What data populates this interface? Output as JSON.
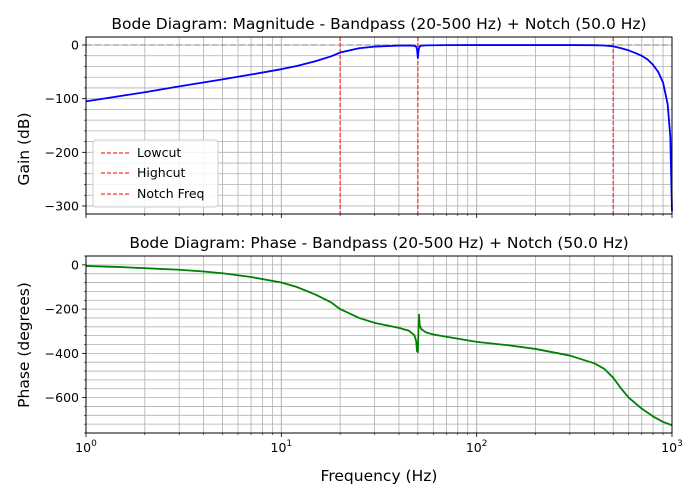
{
  "figure": {
    "xlabel": "Frequency (Hz)"
  },
  "chart_data": [
    {
      "type": "line",
      "title": "Bode Diagram: Magnitude - Bandpass (20-500 Hz) + Notch (50.0 Hz)",
      "xlabel": "",
      "ylabel": "Gain (dB)",
      "xscale": "log",
      "xlim": [
        1,
        1000
      ],
      "ylim": [
        -315,
        15
      ],
      "grid": true,
      "legend_position": "center-left",
      "x_ticks": [
        {
          "base": "10",
          "exp": "0",
          "value": 1
        },
        {
          "base": "10",
          "exp": "1",
          "value": 10
        },
        {
          "base": "10",
          "exp": "2",
          "value": 100
        },
        {
          "base": "10",
          "exp": "3",
          "value": 1000
        }
      ],
      "y_ticks": [
        {
          "label": "0",
          "value": 0
        },
        {
          "label": "−100",
          "value": -100
        },
        {
          "label": "−200",
          "value": -200
        },
        {
          "label": "−300",
          "value": -300
        }
      ],
      "series": [
        {
          "color": "#0000ff",
          "x": [
            1,
            1.5,
            2,
            3,
            5,
            7,
            10,
            12,
            15,
            18,
            20,
            25,
            30,
            40,
            46,
            48,
            49,
            49.5,
            50,
            50.5,
            51,
            52,
            55,
            70,
            100,
            150,
            200,
            300,
            400,
            450,
            500,
            550,
            600,
            650,
            700,
            750,
            800,
            850,
            900,
            950,
            980,
            1000
          ],
          "values": [
            -105,
            -95,
            -88,
            -77,
            -64,
            -55,
            -45,
            -39,
            -30,
            -21,
            -14,
            -6,
            -3,
            -1,
            -0.7,
            -1.5,
            -3,
            -8,
            -24,
            -8,
            -3,
            -1.3,
            -0.6,
            -0.2,
            0,
            0,
            0,
            0,
            -0.3,
            -0.8,
            -2.5,
            -6,
            -10,
            -15,
            -20,
            -27,
            -37,
            -50,
            -70,
            -110,
            -170,
            -310
          ]
        }
      ],
      "reference_lines": [
        {
          "name": "Lowcut",
          "axis": "x",
          "value": 20,
          "color": "#ff0000",
          "style": "dashed"
        },
        {
          "name": "Highcut",
          "axis": "x",
          "value": 500,
          "color": "#ff0000",
          "style": "dashed"
        },
        {
          "name": "Notch Freq",
          "axis": "x",
          "value": 50,
          "color": "#ff0000",
          "style": "dashed"
        },
        {
          "name": "",
          "axis": "y",
          "value": 0,
          "color": "#808080",
          "style": "dashed"
        }
      ],
      "legend": [
        "Lowcut",
        "Highcut",
        "Notch Freq"
      ]
    },
    {
      "type": "line",
      "title": "Bode Diagram: Phase - Bandpass (20-500 Hz) + Notch (50.0 Hz)",
      "xlabel": "Frequency (Hz)",
      "ylabel": "Phase (degrees)",
      "xscale": "log",
      "xlim": [
        1,
        1000
      ],
      "ylim": [
        -760,
        40
      ],
      "grid": true,
      "x_ticks": [
        {
          "base": "10",
          "exp": "0",
          "value": 1
        },
        {
          "base": "10",
          "exp": "1",
          "value": 10
        },
        {
          "base": "10",
          "exp": "2",
          "value": 100
        },
        {
          "base": "10",
          "exp": "3",
          "value": 1000
        }
      ],
      "y_ticks": [
        {
          "label": "0",
          "value": 0
        },
        {
          "label": "−200",
          "value": -200
        },
        {
          "label": "−400",
          "value": -400
        },
        {
          "label": "−600",
          "value": -600
        }
      ],
      "series": [
        {
          "color": "#008000",
          "x": [
            1,
            1.5,
            2,
            3,
            4,
            5,
            7,
            10,
            12,
            15,
            18,
            20,
            25,
            30,
            40,
            45,
            48,
            49,
            49.5,
            50,
            50.3,
            50.7,
            51,
            52,
            55,
            60,
            70,
            100,
            150,
            200,
            300,
            400,
            450,
            500,
            550,
            600,
            700,
            800,
            900,
            1000
          ],
          "values": [
            -5,
            -10,
            -15,
            -22,
            -30,
            -38,
            -55,
            -80,
            -100,
            -135,
            -170,
            -200,
            -240,
            -262,
            -285,
            -298,
            -318,
            -345,
            -390,
            -395,
            -300,
            -225,
            -270,
            -290,
            -305,
            -315,
            -325,
            -348,
            -365,
            -380,
            -410,
            -445,
            -470,
            -510,
            -560,
            -600,
            -650,
            -685,
            -710,
            -725
          ]
        }
      ],
      "legend": []
    }
  ]
}
